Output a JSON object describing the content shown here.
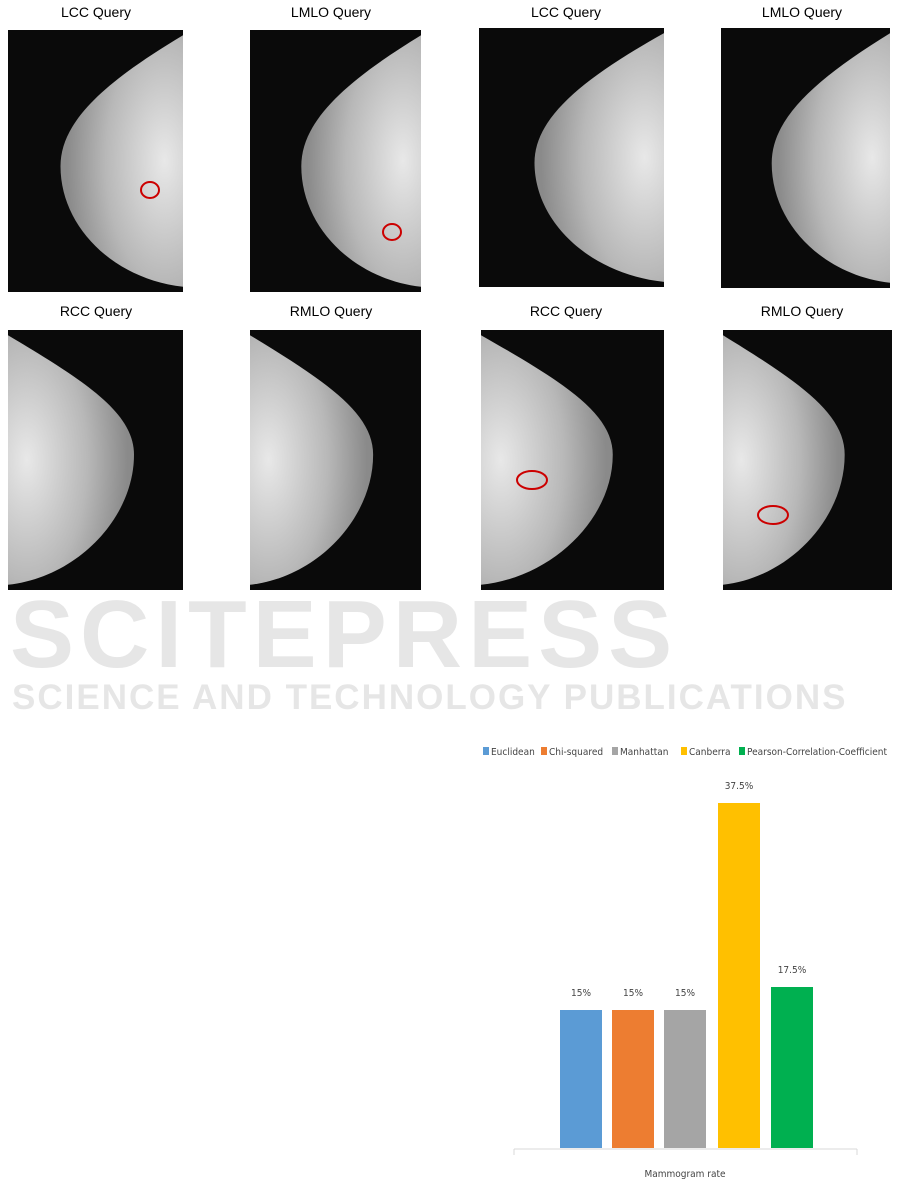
{
  "figure": {
    "panels": [
      {
        "title": "LCC Query",
        "lesion_outlined": true
      },
      {
        "title": "LMLO Query",
        "lesion_outlined": true
      },
      {
        "title": "LCC Query",
        "lesion_outlined": false
      },
      {
        "title": "LMLO Query",
        "lesion_outlined": false
      },
      {
        "title": "RCC Query",
        "lesion_outlined": false
      },
      {
        "title": "RMLO Query",
        "lesion_outlined": false
      },
      {
        "title": "RCC Query",
        "lesion_outlined": true
      },
      {
        "title": "RMLO Query",
        "lesion_outlined": true
      }
    ],
    "lesion_color": "#cc0000"
  },
  "watermark": {
    "line1": "SCITEPRESS",
    "line2": "SCIENCE AND TECHNOLOGY PUBLICATIONS"
  },
  "chart_data": {
    "type": "bar",
    "categories": [
      "Mammogram rate"
    ],
    "xlabel": "Mammogram rate",
    "legend_position": "top",
    "grid": false,
    "ylim": [
      0,
      40
    ],
    "series": [
      {
        "name": "Euclidean",
        "values": [
          15
        ],
        "label": "15%",
        "color": "#5b9bd5"
      },
      {
        "name": "Chi-squared",
        "values": [
          15
        ],
        "label": "15%",
        "color": "#ed7d31"
      },
      {
        "name": "Manhattan",
        "values": [
          15
        ],
        "label": "15%",
        "color": "#a5a5a5"
      },
      {
        "name": "Canberra",
        "values": [
          37.5
        ],
        "label": "37.5%",
        "color": "#ffc000"
      },
      {
        "name": "Pearson-Correlation-Coefficient",
        "values": [
          17.5
        ],
        "label": "17.5%",
        "color": "#00b050"
      }
    ]
  }
}
